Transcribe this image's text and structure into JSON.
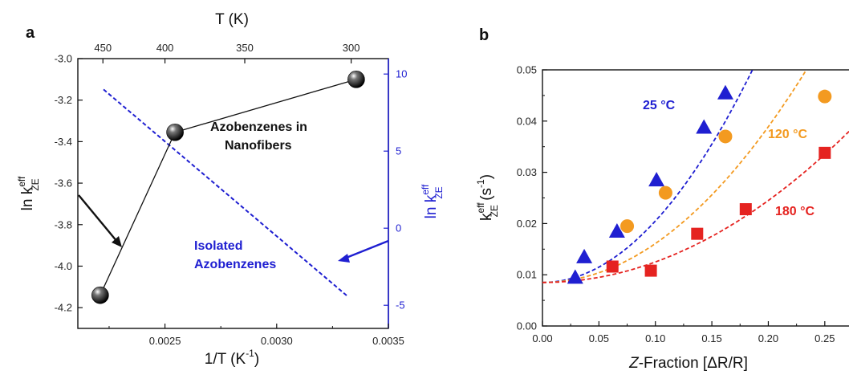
{
  "colors": {
    "blue": "#1f1fd1",
    "orange": "#f39a20",
    "red": "#e52320",
    "black": "#111111"
  },
  "chart_data": [
    {
      "panel": "a",
      "type": "scatter",
      "xlabel": "1/T (K",
      "xlabel_sup": "-1",
      "xlabel_close": ")",
      "xlim": [
        0.00211,
        0.0035
      ],
      "x_ticks": [
        "0.0025",
        "0.0030",
        "0.0035"
      ],
      "top_axis_label": "T (K)",
      "top_ticks": [
        "450",
        "400",
        "350",
        "300"
      ],
      "ylabel": "ln k",
      "ylabel_sup": "eff",
      "ylabel_sub": "ZE",
      "ylim": [
        -4.3,
        -3.0
      ],
      "y_ticks": [
        "-3.0",
        "-3.2",
        "-3.4",
        "-3.6",
        "-3.8",
        "-4.0",
        "-4.2"
      ],
      "y2label": "ln k",
      "y2label_sup": "eff",
      "y2label_sub": "ZE",
      "y2lim": [
        -6.5,
        11
      ],
      "y2_ticks": [
        "10",
        "5",
        "0",
        "-5"
      ],
      "series": [
        {
          "name": "Azobenzenes in Nanofibers",
          "style": "black spheres with connecting line",
          "x": [
            0.00221,
            0.002545,
            0.003356
          ],
          "y": [
            -4.14,
            -3.355,
            -3.1
          ]
        },
        {
          "name": "Isolated Azobenzenes",
          "style": "blue dashed line on right axis",
          "x": [
            0.002225,
            0.003316
          ],
          "y": [
            9.0,
            -4.4
          ]
        }
      ],
      "annotations": {
        "nanofibers": [
          "Azobenzenes in",
          "Nanofibers"
        ],
        "isolated": [
          "Isolated",
          "Azobenzenes"
        ]
      }
    },
    {
      "panel": "b",
      "type": "scatter",
      "xlabel_italic": "Z",
      "xlabel_rest": "-Fraction [ΔR/R]",
      "xlim": [
        0.0,
        0.275
      ],
      "x_ticks": [
        "0.00",
        "0.05",
        "0.10",
        "0.15",
        "0.20",
        "0.25"
      ],
      "ylabel": "k",
      "ylabel_sup": "eff",
      "ylabel_sub": "ZE",
      "ylabel_unit": " (s",
      "ylabel_unit_sup": "-1",
      "ylabel_unit_close": ")",
      "ylim": [
        0.0,
        0.05
      ],
      "y_ticks": [
        "0.00",
        "0.01",
        "0.02",
        "0.03",
        "0.04",
        "0.05"
      ],
      "series": [
        {
          "name": "25 °C",
          "marker": "triangle",
          "color": "#1f1fd1",
          "x": [
            0.029,
            0.037,
            0.066,
            0.101,
            0.143,
            0.162
          ],
          "y": [
            0.0095,
            0.0135,
            0.0185,
            0.0285,
            0.0388,
            0.0455
          ],
          "fit_a": 1.2
        },
        {
          "name": "120 °C",
          "marker": "circle",
          "color": "#f39a20",
          "x": [
            0.075,
            0.109,
            0.162,
            0.25
          ],
          "y": [
            0.0195,
            0.026,
            0.037,
            0.0448
          ],
          "fit_a": 0.76
        },
        {
          "name": "180 °C",
          "marker": "square",
          "color": "#e52320",
          "x": [
            0.062,
            0.096,
            0.137,
            0.18,
            0.25
          ],
          "y": [
            0.0116,
            0.0108,
            0.018,
            0.0228,
            0.0338
          ],
          "fit_a": 0.4
        }
      ],
      "fit_intercept": 0.0085
    }
  ]
}
